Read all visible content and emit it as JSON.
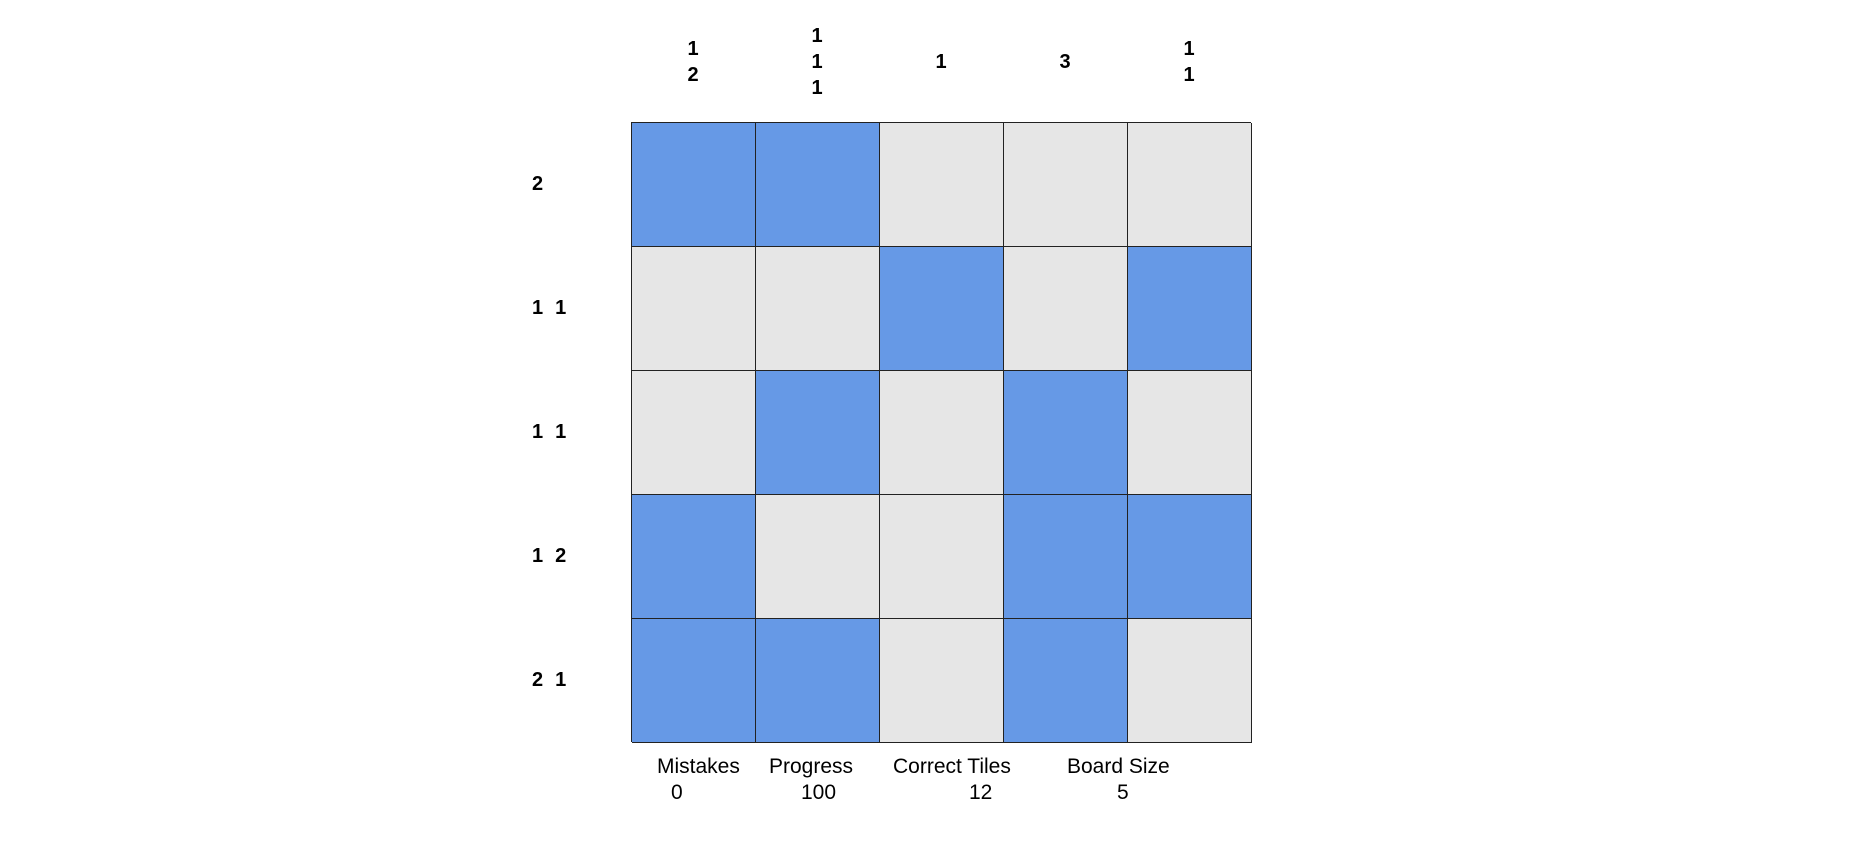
{
  "puzzle": {
    "column_clues": [
      [
        "1",
        "2"
      ],
      [
        "1",
        "1",
        "1"
      ],
      [
        "1"
      ],
      [
        "3"
      ],
      [
        "1",
        "1"
      ]
    ],
    "row_clues": [
      [
        "2"
      ],
      [
        "1",
        "1"
      ],
      [
        "1",
        "1"
      ],
      [
        "1",
        "2"
      ],
      [
        "2",
        "1"
      ]
    ],
    "grid": [
      [
        1,
        1,
        0,
        0,
        0
      ],
      [
        0,
        0,
        1,
        0,
        1
      ],
      [
        0,
        1,
        0,
        1,
        0
      ],
      [
        1,
        0,
        0,
        1,
        1
      ],
      [
        1,
        1,
        0,
        1,
        0
      ]
    ],
    "filled_color": "#6699e6",
    "empty_color": "#e6e6e6"
  },
  "stats": {
    "mistakes_label": "Mistakes",
    "mistakes_value": "0",
    "progress_label": "Progress",
    "progress_value": "100",
    "correct_tiles_label": "Correct Tiles",
    "correct_tiles_value": "12",
    "board_size_label": "Board Size",
    "board_size_value": "5"
  }
}
